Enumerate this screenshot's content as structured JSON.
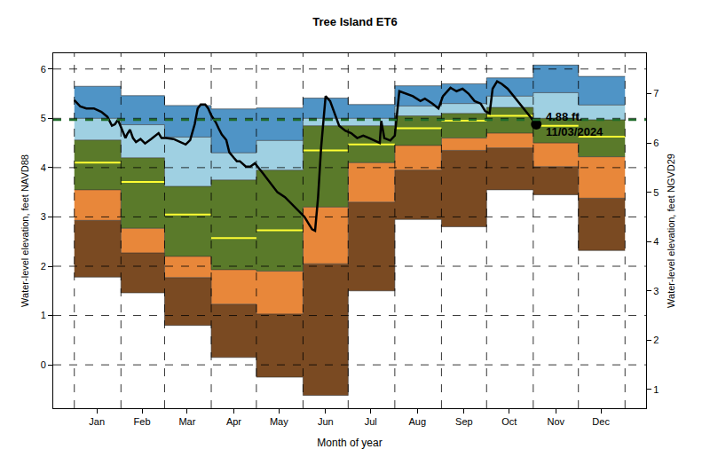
{
  "chart_data": {
    "type": "line",
    "title": "Tree Island ET6",
    "x_label": "Month of year",
    "y_label": "Water-level elevation, feet NAVD88",
    "y2_label": "Water-level elevation, feet NGVD29",
    "xlim": [
      -14,
      380
    ],
    "xticks": [
      {
        "value": 15,
        "label": "Jan"
      },
      {
        "value": 45,
        "label": "Feb"
      },
      {
        "value": 75,
        "label": "Mar"
      },
      {
        "value": 106,
        "label": "Apr"
      },
      {
        "value": 136,
        "label": "May"
      },
      {
        "value": 167,
        "label": "Jun"
      },
      {
        "value": 197,
        "label": "Jul"
      },
      {
        "value": 228,
        "label": "Aug"
      },
      {
        "value": 259,
        "label": "Sep"
      },
      {
        "value": 289,
        "label": "Oct"
      },
      {
        "value": 320,
        "label": "Nov"
      },
      {
        "value": 350,
        "label": "Dec"
      }
    ],
    "ylim": [
      -0.88,
      6.32
    ],
    "yticks": [
      0,
      1,
      2,
      3,
      4,
      5,
      6
    ],
    "y2lim": [
      0.62,
      7.82
    ],
    "y2ticks": [
      1,
      2,
      3,
      4,
      5,
      6,
      7
    ],
    "grid": true,
    "month_edges": [
      0,
      31,
      60,
      91,
      121,
      152,
      182,
      213,
      244,
      274,
      305,
      335,
      366
    ],
    "bands": {
      "levels": [
        [
          1.78,
          1.46,
          0.8,
          0.15,
          -0.25,
          -0.62,
          1.5,
          2.95,
          2.8,
          3.55,
          3.45,
          2.32
        ],
        [
          2.93,
          2.27,
          1.77,
          1.23,
          1.03,
          2.05,
          3.3,
          3.95,
          4.35,
          4.4,
          4.02,
          3.38
        ],
        [
          3.55,
          2.77,
          2.2,
          1.93,
          1.9,
          3.2,
          4.1,
          4.45,
          4.6,
          4.7,
          4.5,
          4.22
        ],
        [
          4.56,
          4.2,
          3.62,
          3.75,
          3.95,
          4.85,
          4.85,
          5.05,
          5.1,
          5.22,
          5.0,
          4.97
        ],
        [
          5.0,
          4.87,
          4.62,
          4.3,
          4.55,
          5.0,
          5.0,
          5.25,
          5.3,
          5.45,
          5.52,
          5.27
        ],
        [
          5.65,
          5.46,
          5.26,
          5.19,
          5.21,
          5.41,
          5.28,
          5.66,
          5.7,
          5.82,
          6.08,
          5.85
        ]
      ],
      "colors": [
        "#7a4a22",
        "#e8873a",
        "#5a7a2a",
        "#9fd0e2",
        "#4f94c6"
      ]
    },
    "median": {
      "values": [
        4.1,
        3.71,
        3.05,
        2.57,
        2.73,
        4.35,
        4.47,
        4.8,
        4.95,
        5.05,
        4.85,
        4.63
      ],
      "color": "#ffff33"
    },
    "series": [
      {
        "color": "#000000",
        "x": [
          0,
          4,
          8,
          13,
          18,
          22,
          25,
          27,
          29,
          31,
          34,
          35,
          37,
          39,
          41,
          44,
          47,
          51,
          56,
          58,
          61,
          66,
          72,
          74,
          77,
          80,
          82,
          84,
          87,
          89,
          91,
          94,
          96,
          98,
          101,
          103,
          106,
          108,
          110,
          114,
          117,
          120,
          125,
          130,
          135,
          140,
          145,
          150,
          153,
          156,
          158,
          160,
          162,
          164,
          166,
          167,
          170,
          174,
          176,
          180,
          184,
          188,
          192,
          196,
          200,
          203,
          204,
          206,
          210,
          213,
          216,
          220,
          225,
          230,
          233,
          238,
          242,
          245,
          250,
          254,
          258,
          262,
          266,
          270,
          273,
          276,
          278,
          281,
          284,
          288,
          292,
          296,
          300,
          304,
          307
        ],
        "values": [
          5.37,
          5.24,
          5.2,
          5.2,
          5.13,
          5.03,
          4.85,
          4.88,
          4.97,
          4.83,
          4.6,
          4.67,
          4.77,
          4.6,
          4.52,
          4.58,
          4.49,
          4.58,
          4.7,
          4.6,
          4.6,
          4.58,
          4.49,
          4.47,
          4.56,
          4.88,
          5.2,
          5.28,
          5.28,
          5.2,
          5.06,
          4.92,
          4.79,
          4.67,
          4.56,
          4.31,
          4.2,
          4.13,
          4.13,
          4.02,
          4.02,
          4.09,
          3.9,
          3.7,
          3.5,
          3.4,
          3.25,
          3.1,
          3.0,
          2.85,
          2.75,
          2.72,
          3.4,
          4.4,
          5.2,
          5.45,
          5.35,
          5.0,
          4.85,
          4.75,
          4.7,
          4.6,
          4.65,
          4.6,
          4.55,
          4.5,
          4.95,
          4.6,
          4.55,
          4.65,
          5.55,
          5.5,
          5.45,
          5.35,
          5.4,
          5.3,
          5.2,
          5.45,
          5.62,
          5.55,
          5.6,
          5.5,
          5.35,
          5.3,
          5.15,
          5.1,
          5.6,
          5.75,
          5.7,
          5.6,
          5.45,
          5.3,
          5.15,
          5.0,
          4.88
        ]
      }
    ],
    "reference_line": {
      "value": 4.97,
      "color": "#1f6b2a",
      "line_style": "dash"
    },
    "annotation": {
      "x": 307,
      "y": 4.88,
      "text": [
        "4.88 ft.",
        "11/03/2024"
      ],
      "marker": "circle",
      "color": "#000000"
    }
  }
}
